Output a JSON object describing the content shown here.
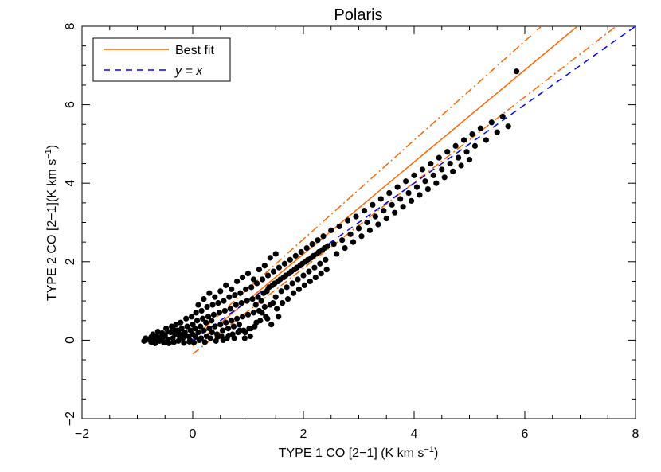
{
  "chart_data": {
    "type": "scatter",
    "title": "Polaris",
    "xlabel": "TYPE 1 CO [2−1] (K km s",
    "xlabel_sup": "−1",
    "xlabel_tail": ")",
    "ylabel": "TYPE 2 CO [2−1](K km s",
    "ylabel_sup": "−1",
    "ylabel_tail": ")",
    "xlim": [
      -2,
      8
    ],
    "ylim": [
      -2,
      8
    ],
    "x_ticks": [
      -2,
      0,
      2,
      4,
      6,
      8
    ],
    "y_ticks": [
      -2,
      0,
      2,
      4,
      6,
      8
    ],
    "x_tick_labels": [
      "−2",
      "0",
      "2",
      "4",
      "6",
      "8"
    ],
    "y_tick_labels": [
      "−2",
      "0",
      "2",
      "4",
      "6",
      "8"
    ],
    "legend": {
      "placement": "top-left",
      "entries": [
        {
          "label": "Best fit",
          "style": "solid",
          "color": "#ff6600"
        },
        {
          "label": "y = x",
          "style": "dashed",
          "color": "#0000ff"
        }
      ]
    },
    "colors": {
      "points": "#000000",
      "best_fit": "#ff6600",
      "bounds": "#ff6600",
      "identity": "#0000ff"
    },
    "series": [
      {
        "kind": "scatter",
        "points": [
          [
            -0.88,
            -0.02
          ],
          [
            -0.8,
            0.02
          ],
          [
            -0.75,
            -0.05
          ],
          [
            -0.72,
            0.15
          ],
          [
            -0.7,
            0.05
          ],
          [
            -0.68,
            -0.08
          ],
          [
            -0.65,
            0.1
          ],
          [
            -0.63,
            0.22
          ],
          [
            -0.6,
            -0.02
          ],
          [
            -0.58,
            0.08
          ],
          [
            -0.55,
            0.18
          ],
          [
            -0.52,
            -0.06
          ],
          [
            -0.5,
            0.12
          ],
          [
            -0.48,
            0.3
          ],
          [
            -0.45,
            0.02
          ],
          [
            -0.43,
            -0.08
          ],
          [
            -0.4,
            0.2
          ],
          [
            -0.38,
            0.35
          ],
          [
            -0.36,
            0.05
          ],
          [
            -0.34,
            -0.05
          ],
          [
            -0.32,
            0.15
          ],
          [
            -0.3,
            0.4
          ],
          [
            -0.28,
            0.25
          ],
          [
            -0.26,
            -0.02
          ],
          [
            -0.24,
            0.1
          ],
          [
            -0.22,
            0.45
          ],
          [
            -0.2,
            0.3
          ],
          [
            -0.18,
            0.05
          ],
          [
            -0.16,
            -0.07
          ],
          [
            -0.14,
            0.2
          ],
          [
            -0.12,
            0.55
          ],
          [
            -0.1,
            0.35
          ],
          [
            -0.08,
            0.1
          ],
          [
            -0.06,
            -0.04
          ],
          [
            -0.04,
            0.25
          ],
          [
            -0.02,
            0.6
          ],
          [
            0.0,
            0.4
          ],
          [
            0.0,
            0.15
          ],
          [
            0.02,
            -0.06
          ],
          [
            0.04,
            0.3
          ],
          [
            0.06,
            0.7
          ],
          [
            0.08,
            0.5
          ],
          [
            0.1,
            0.2
          ],
          [
            0.12,
            0.0
          ],
          [
            0.14,
            0.35
          ],
          [
            0.16,
            0.75
          ],
          [
            0.18,
            0.55
          ],
          [
            0.2,
            0.25
          ],
          [
            0.22,
            -0.05
          ],
          [
            0.24,
            0.45
          ],
          [
            0.26,
            0.85
          ],
          [
            0.28,
            0.6
          ],
          [
            0.3,
            0.3
          ],
          [
            0.32,
            0.05
          ],
          [
            0.34,
            0.5
          ],
          [
            0.36,
            0.9
          ],
          [
            0.38,
            0.65
          ],
          [
            0.4,
            0.35
          ],
          [
            0.42,
            -0.02
          ],
          [
            0.44,
            0.15
          ],
          [
            0.46,
            0.95
          ],
          [
            0.48,
            0.7
          ],
          [
            0.5,
            0.4
          ],
          [
            0.52,
            0.1
          ],
          [
            0.54,
            0.25
          ],
          [
            0.56,
            1.0
          ],
          [
            0.58,
            0.75
          ],
          [
            0.6,
            0.45
          ],
          [
            0.62,
            0.05
          ],
          [
            0.64,
            0.3
          ],
          [
            0.66,
            1.1
          ],
          [
            0.68,
            0.8
          ],
          [
            0.7,
            0.5
          ],
          [
            0.72,
            0.15
          ],
          [
            0.74,
            0.35
          ],
          [
            0.76,
            1.15
          ],
          [
            0.78,
            0.9
          ],
          [
            0.8,
            0.55
          ],
          [
            0.82,
            0.2
          ],
          [
            0.84,
            0.4
          ],
          [
            0.86,
            1.2
          ],
          [
            0.88,
            0.95
          ],
          [
            0.9,
            0.6
          ],
          [
            0.92,
            0.25
          ],
          [
            0.94,
            0.05
          ],
          [
            0.96,
            1.3
          ],
          [
            0.98,
            1.0
          ],
          [
            1.0,
            0.65
          ],
          [
            1.02,
            0.3
          ],
          [
            1.04,
            0.1
          ],
          [
            1.06,
            1.35
          ],
          [
            1.08,
            1.05
          ],
          [
            1.1,
            0.7
          ],
          [
            1.12,
            0.35
          ],
          [
            1.14,
            0.9
          ],
          [
            1.16,
            1.45
          ],
          [
            1.18,
            1.1
          ],
          [
            1.2,
            0.75
          ],
          [
            1.22,
            0.5
          ],
          [
            1.24,
            1.0
          ],
          [
            1.26,
            1.55
          ],
          [
            1.28,
            1.2
          ],
          [
            1.3,
            0.85
          ],
          [
            1.32,
            0.6
          ],
          [
            1.34,
            1.25
          ],
          [
            1.36,
            1.65
          ],
          [
            1.38,
            1.35
          ],
          [
            1.4,
            0.9
          ],
          [
            1.42,
            0.4
          ],
          [
            1.44,
            1.4
          ],
          [
            1.46,
            1.75
          ],
          [
            1.48,
            1.45
          ],
          [
            1.5,
            1.1
          ],
          [
            1.52,
            0.8
          ],
          [
            1.54,
            1.5
          ],
          [
            1.56,
            1.85
          ],
          [
            1.58,
            1.55
          ],
          [
            1.6,
            1.25
          ],
          [
            1.62,
            0.95
          ],
          [
            1.64,
            1.6
          ],
          [
            1.66,
            1.95
          ],
          [
            1.68,
            1.65
          ],
          [
            1.7,
            1.35
          ],
          [
            1.72,
            1.05
          ],
          [
            1.74,
            1.7
          ],
          [
            1.76,
            2.05
          ],
          [
            1.78,
            1.75
          ],
          [
            1.8,
            1.45
          ],
          [
            1.82,
            1.2
          ],
          [
            1.84,
            1.8
          ],
          [
            1.86,
            2.15
          ],
          [
            1.88,
            1.85
          ],
          [
            1.9,
            1.55
          ],
          [
            1.92,
            1.3
          ],
          [
            1.94,
            1.9
          ],
          [
            1.96,
            2.25
          ],
          [
            1.98,
            1.95
          ],
          [
            2.0,
            1.65
          ],
          [
            2.02,
            1.4
          ],
          [
            2.04,
            2.0
          ],
          [
            2.06,
            2.35
          ],
          [
            2.08,
            2.05
          ],
          [
            2.1,
            1.75
          ],
          [
            2.12,
            1.5
          ],
          [
            2.14,
            2.1
          ],
          [
            2.16,
            2.45
          ],
          [
            2.18,
            2.15
          ],
          [
            2.2,
            1.85
          ],
          [
            2.22,
            1.6
          ],
          [
            2.24,
            2.2
          ],
          [
            2.26,
            2.55
          ],
          [
            2.28,
            2.25
          ],
          [
            2.3,
            1.95
          ],
          [
            2.32,
            1.7
          ],
          [
            2.34,
            2.3
          ],
          [
            2.36,
            2.65
          ],
          [
            2.38,
            2.35
          ],
          [
            2.4,
            2.05
          ],
          [
            2.42,
            1.8
          ],
          [
            2.44,
            2.4
          ],
          [
            2.5,
            2.8
          ],
          [
            2.55,
            2.45
          ],
          [
            2.6,
            2.2
          ],
          [
            2.65,
            2.9
          ],
          [
            2.7,
            2.55
          ],
          [
            2.75,
            2.35
          ],
          [
            2.8,
            3.05
          ],
          [
            2.85,
            2.7
          ],
          [
            2.9,
            2.5
          ],
          [
            2.95,
            3.15
          ],
          [
            3.0,
            2.85
          ],
          [
            3.05,
            2.65
          ],
          [
            3.1,
            3.3
          ],
          [
            3.15,
            3.0
          ],
          [
            3.2,
            2.8
          ],
          [
            3.25,
            3.45
          ],
          [
            3.3,
            3.15
          ],
          [
            3.35,
            2.95
          ],
          [
            3.4,
            3.6
          ],
          [
            3.45,
            3.3
          ],
          [
            3.5,
            3.1
          ],
          [
            3.55,
            3.75
          ],
          [
            3.6,
            3.45
          ],
          [
            3.65,
            3.25
          ],
          [
            3.7,
            3.9
          ],
          [
            3.75,
            3.6
          ],
          [
            3.8,
            3.4
          ],
          [
            3.85,
            4.05
          ],
          [
            3.9,
            3.75
          ],
          [
            3.95,
            3.55
          ],
          [
            4.0,
            4.2
          ],
          [
            4.05,
            3.9
          ],
          [
            4.1,
            3.7
          ],
          [
            4.15,
            4.35
          ],
          [
            4.2,
            4.05
          ],
          [
            4.25,
            3.85
          ],
          [
            4.3,
            4.5
          ],
          [
            4.35,
            4.2
          ],
          [
            4.4,
            4.0
          ],
          [
            4.45,
            4.65
          ],
          [
            4.5,
            4.35
          ],
          [
            4.55,
            4.15
          ],
          [
            4.6,
            4.8
          ],
          [
            4.65,
            4.5
          ],
          [
            4.7,
            4.3
          ],
          [
            4.75,
            4.95
          ],
          [
            4.8,
            4.65
          ],
          [
            4.85,
            4.45
          ],
          [
            4.9,
            5.1
          ],
          [
            4.95,
            4.8
          ],
          [
            5.0,
            4.6
          ],
          [
            5.05,
            5.25
          ],
          [
            5.1,
            4.95
          ],
          [
            5.2,
            5.4
          ],
          [
            5.3,
            5.1
          ],
          [
            5.4,
            5.55
          ],
          [
            5.5,
            5.3
          ],
          [
            5.6,
            5.7
          ],
          [
            5.7,
            5.45
          ],
          [
            5.85,
            6.85
          ],
          [
            1.45,
            0.95
          ],
          [
            1.55,
            0.6
          ],
          [
            1.35,
            0.55
          ],
          [
            1.25,
            0.7
          ],
          [
            1.15,
            0.45
          ],
          [
            1.05,
            0.3
          ],
          [
            0.95,
            0.2
          ],
          [
            0.85,
            0.25
          ],
          [
            0.75,
            0.05
          ],
          [
            0.65,
            0.12
          ],
          [
            0.55,
            0.0
          ],
          [
            0.45,
            0.08
          ],
          [
            0.35,
            0.2
          ],
          [
            0.25,
            0.1
          ],
          [
            0.15,
            0.05
          ],
          [
            0.05,
            0.08
          ],
          [
            -0.05,
            0.0
          ],
          [
            -0.15,
            0.12
          ],
          [
            -0.25,
            0.18
          ],
          [
            -0.35,
            0.28
          ],
          [
            -0.45,
            0.22
          ],
          [
            -0.55,
            0.05
          ],
          [
            -0.65,
            0.02
          ],
          [
            -0.75,
            0.08
          ],
          [
            -0.85,
            0.05
          ],
          [
            0.1,
            0.9
          ],
          [
            0.2,
            1.05
          ],
          [
            0.3,
            1.2
          ],
          [
            0.4,
            1.1
          ],
          [
            0.5,
            1.25
          ],
          [
            0.6,
            1.4
          ],
          [
            0.7,
            1.3
          ],
          [
            0.8,
            1.5
          ],
          [
            0.9,
            1.6
          ],
          [
            1.0,
            1.7
          ],
          [
            1.1,
            1.55
          ],
          [
            1.2,
            1.8
          ],
          [
            1.3,
            1.9
          ],
          [
            1.4,
            2.1
          ],
          [
            1.5,
            2.2
          ]
        ]
      },
      {
        "kind": "line",
        "name": "Best fit",
        "points": [
          [
            0,
            -0.15
          ],
          [
            6.95,
            8
          ]
        ],
        "style": "solid"
      },
      {
        "kind": "line",
        "points": [
          [
            0,
            0.05
          ],
          [
            6.3,
            8
          ]
        ],
        "style": "dashdot"
      },
      {
        "kind": "line",
        "points": [
          [
            0,
            -0.35
          ],
          [
            7.65,
            8
          ]
        ],
        "style": "dashdot"
      },
      {
        "kind": "line",
        "name": "y = x",
        "points": [
          [
            0,
            0
          ],
          [
            8,
            8
          ]
        ],
        "style": "dashed"
      }
    ]
  }
}
